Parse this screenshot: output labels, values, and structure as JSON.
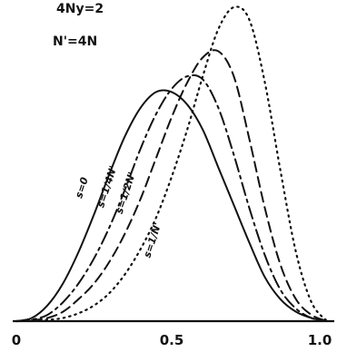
{
  "figure": {
    "top_note_1": "4Ny=2",
    "top_note_2": "N'=4N"
  },
  "chart_data": {
    "type": "line",
    "title": "",
    "xlabel": "",
    "ylabel": "",
    "xlim": [
      0,
      1.0
    ],
    "ylim": [
      0,
      1.0
    ],
    "x_ticks": [
      {
        "value": 0,
        "label": "0"
      },
      {
        "value": 0.5,
        "label": "0.5"
      },
      {
        "value": 1.0,
        "label": "1.0"
      }
    ],
    "grid": false,
    "series": [
      {
        "name": "s=0",
        "style": "solid",
        "x": [
          0,
          0.05,
          0.1,
          0.15,
          0.2,
          0.25,
          0.3,
          0.35,
          0.4,
          0.45,
          0.5,
          0.55,
          0.6,
          0.65,
          0.7,
          0.75,
          0.8,
          0.85,
          0.9,
          0.95,
          1.0
        ],
        "y": [
          0,
          0.01,
          0.05,
          0.12,
          0.22,
          0.34,
          0.47,
          0.59,
          0.68,
          0.73,
          0.73,
          0.69,
          0.61,
          0.49,
          0.37,
          0.25,
          0.14,
          0.07,
          0.03,
          0.01,
          0
        ]
      },
      {
        "name": "s=1/4N'",
        "style": "dashdot",
        "x": [
          0,
          0.05,
          0.1,
          0.15,
          0.2,
          0.25,
          0.3,
          0.35,
          0.4,
          0.45,
          0.5,
          0.55,
          0.6,
          0.65,
          0.7,
          0.75,
          0.8,
          0.85,
          0.9,
          0.95,
          1.0
        ],
        "y": [
          0,
          0.005,
          0.02,
          0.06,
          0.12,
          0.2,
          0.3,
          0.42,
          0.55,
          0.66,
          0.74,
          0.78,
          0.77,
          0.68,
          0.53,
          0.36,
          0.21,
          0.1,
          0.04,
          0.01,
          0
        ]
      },
      {
        "name": "s=1/2N'",
        "style": "dashed",
        "x": [
          0,
          0.05,
          0.1,
          0.15,
          0.2,
          0.25,
          0.3,
          0.35,
          0.4,
          0.45,
          0.5,
          0.55,
          0.6,
          0.65,
          0.7,
          0.75,
          0.8,
          0.85,
          0.9,
          0.95,
          1.0
        ],
        "y": [
          0,
          0.003,
          0.01,
          0.03,
          0.07,
          0.12,
          0.19,
          0.28,
          0.39,
          0.52,
          0.65,
          0.76,
          0.84,
          0.86,
          0.78,
          0.58,
          0.36,
          0.18,
          0.07,
          0.02,
          0
        ]
      },
      {
        "name": "s=1/N'",
        "style": "dotted",
        "x": [
          0,
          0.05,
          0.1,
          0.15,
          0.2,
          0.25,
          0.3,
          0.35,
          0.4,
          0.45,
          0.5,
          0.55,
          0.6,
          0.65,
          0.7,
          0.75,
          0.8,
          0.85,
          0.9,
          0.95,
          1.0
        ],
        "y": [
          0,
          0.001,
          0.004,
          0.01,
          0.025,
          0.05,
          0.09,
          0.15,
          0.23,
          0.33,
          0.46,
          0.61,
          0.78,
          0.93,
          1.0,
          0.96,
          0.76,
          0.48,
          0.22,
          0.06,
          0
        ]
      }
    ],
    "labels": [
      {
        "text": "s=0",
        "series": "s=0"
      },
      {
        "text": "s=1/4N'",
        "series": "s=1/4N'"
      },
      {
        "text": "s=1/2N'",
        "series": "s=1/2N'"
      },
      {
        "text": "s=1/N'",
        "series": "s=1/N'"
      }
    ]
  }
}
